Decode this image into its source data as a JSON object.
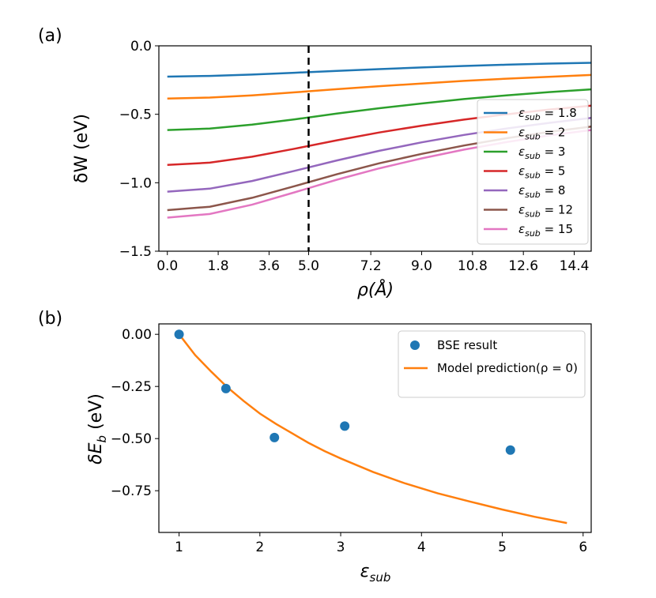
{
  "chart_data": [
    {
      "panel_label": "(a)",
      "type": "line",
      "xlabel": "ρ(Å)",
      "ylabel": "δW (eV)",
      "xlim": [
        -0.3,
        15.0
      ],
      "ylim": [
        -1.5,
        0.0
      ],
      "xticks": [
        0.0,
        1.8,
        3.6,
        5.0,
        7.2,
        9.0,
        10.8,
        12.6,
        14.4
      ],
      "xtick_labels": [
        "0.0",
        "1.8",
        "3.6",
        "5.0",
        "7.2",
        "9.0",
        "10.8",
        "12.6",
        "14.4"
      ],
      "yticks": [
        0.0,
        -0.5,
        -1.0,
        -1.5
      ],
      "ytick_labels": [
        "0.0",
        "−0.5",
        "−1.0",
        "−1.5"
      ],
      "vline": {
        "x": 5.0,
        "style": "dashed",
        "color": "#000000"
      },
      "legend_position": "right",
      "x": [
        0,
        1.5,
        3,
        4.5,
        6,
        7.5,
        9,
        10.5,
        12,
        13.5,
        15
      ],
      "series": [
        {
          "name": "ε_sub = 1.8",
          "sub_symbol": "ε",
          "sub_index": "sub",
          "sub_rest": " = 1.8",
          "color": "#1f77b4",
          "values": [
            -0.225,
            -0.22,
            -0.21,
            -0.197,
            -0.183,
            -0.17,
            -0.158,
            -0.147,
            -0.138,
            -0.13,
            -0.124
          ]
        },
        {
          "name": "ε_sub = 2",
          "sub_symbol": "ε",
          "sub_index": "sub",
          "sub_rest": " = 2",
          "color": "#ff7f0e",
          "values": [
            -0.385,
            -0.378,
            -0.362,
            -0.34,
            -0.317,
            -0.295,
            -0.275,
            -0.256,
            -0.24,
            -0.226,
            -0.213
          ]
        },
        {
          "name": "ε_sub = 3",
          "sub_symbol": "ε",
          "sub_index": "sub",
          "sub_rest": " = 3",
          "color": "#2ca02c",
          "values": [
            -0.615,
            -0.604,
            -0.576,
            -0.537,
            -0.495,
            -0.456,
            -0.421,
            -0.389,
            -0.362,
            -0.338,
            -0.318
          ]
        },
        {
          "name": "ε_sub = 5",
          "sub_symbol": "ε",
          "sub_index": "sub",
          "sub_rest": " = 5",
          "color": "#d62728",
          "values": [
            -0.87,
            -0.853,
            -0.81,
            -0.752,
            -0.69,
            -0.633,
            -0.583,
            -0.539,
            -0.5,
            -0.466,
            -0.437
          ]
        },
        {
          "name": "ε_sub = 8",
          "sub_symbol": "ε",
          "sub_index": "sub",
          "sub_rest": " = 8",
          "color": "#9467bd",
          "values": [
            -1.065,
            -1.043,
            -0.987,
            -0.913,
            -0.837,
            -0.767,
            -0.705,
            -0.651,
            -0.604,
            -0.563,
            -0.527
          ]
        },
        {
          "name": "ε_sub = 12",
          "sub_symbol": "ε",
          "sub_index": "sub",
          "sub_rest": " = 12",
          "color": "#8c564b",
          "values": [
            -1.2,
            -1.175,
            -1.11,
            -1.025,
            -0.938,
            -0.858,
            -0.789,
            -0.728,
            -0.675,
            -0.629,
            -0.59
          ]
        },
        {
          "name": "ε_sub = 15",
          "sub_symbol": "ε",
          "sub_index": "sub",
          "sub_rest": " = 15",
          "color": "#e377c2",
          "values": [
            -1.255,
            -1.228,
            -1.16,
            -1.07,
            -0.978,
            -0.895,
            -0.822,
            -0.758,
            -0.703,
            -0.655,
            -0.615
          ]
        }
      ]
    },
    {
      "panel_label": "(b)",
      "type": "scatter+line",
      "xlabel": "ε_sub",
      "xlabel_main": "ε",
      "xlabel_sub": "sub",
      "ylabel": "δE_b (eV)",
      "ylabel_main": "δE",
      "ylabel_sub": "b",
      "ylabel_rest": " (eV)",
      "xlim": [
        0.75,
        6.1
      ],
      "ylim": [
        -0.95,
        0.05
      ],
      "xticks": [
        1,
        2,
        3,
        4,
        5,
        6
      ],
      "xtick_labels": [
        "1",
        "2",
        "3",
        "4",
        "5",
        "6"
      ],
      "yticks": [
        0.0,
        -0.25,
        -0.5,
        -0.75
      ],
      "ytick_labels": [
        "0.00",
        "−0.25",
        "−0.50",
        "−0.75"
      ],
      "legend_position": "top-right",
      "scatter": {
        "name": "BSE result",
        "color": "#1f77b4",
        "x": [
          1.0,
          1.58,
          2.18,
          3.05,
          5.1
        ],
        "y": [
          0.0,
          -0.26,
          -0.495,
          -0.44,
          -0.555
        ]
      },
      "line": {
        "name": "Model prediction(ρ = 0)",
        "color": "#ff7f0e",
        "x": [
          1.0,
          1.2,
          1.4,
          1.6,
          1.8,
          2.0,
          2.2,
          2.4,
          2.6,
          2.8,
          3.0,
          3.4,
          3.8,
          4.2,
          4.6,
          5.0,
          5.4,
          5.8
        ],
        "y": [
          0.0,
          -0.1,
          -0.18,
          -0.255,
          -0.32,
          -0.38,
          -0.43,
          -0.475,
          -0.52,
          -0.56,
          -0.595,
          -0.66,
          -0.715,
          -0.762,
          -0.802,
          -0.84,
          -0.875,
          -0.905
        ]
      }
    }
  ]
}
